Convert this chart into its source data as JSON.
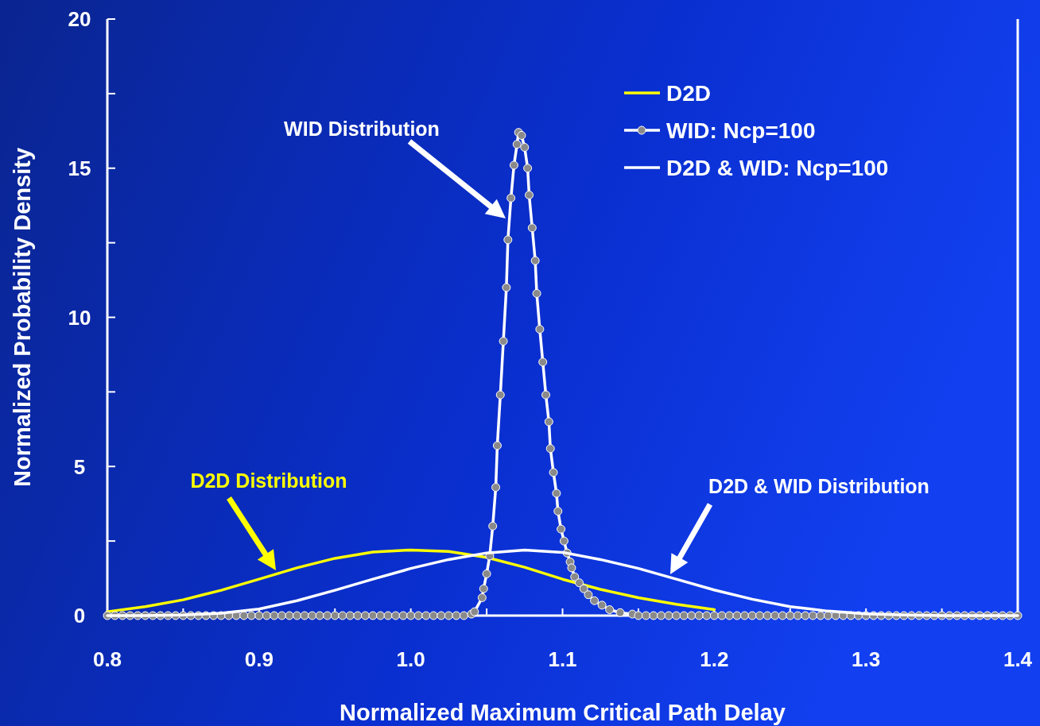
{
  "chart_data": {
    "type": "line",
    "xlabel": "Normalized Maximum Critical Path Delay",
    "ylabel": "Normalized Probability Density",
    "xlim": [
      0.8,
      1.4
    ],
    "ylim": [
      0,
      20
    ],
    "xticks": [
      0.8,
      {
        "value": 0.85,
        "label": null
      },
      0.9,
      {
        "value": 0.95,
        "label": null
      },
      {
        "value": 1,
        "label": "1.0"
      },
      {
        "value": 1.05,
        "label": null
      },
      1.1,
      {
        "value": 1.15,
        "label": null
      },
      1.2,
      {
        "value": 1.25,
        "label": null
      },
      1.3,
      {
        "value": 1.35,
        "label": null
      },
      1.4
    ],
    "yticks": [
      0,
      {
        "value": 2.5,
        "label": null
      },
      5,
      {
        "value": 7.5,
        "label": null
      },
      10,
      {
        "value": 12.5,
        "label": null
      },
      15,
      {
        "value": 17.5,
        "label": null
      },
      20
    ],
    "grid": false,
    "legend": "top right",
    "series": [
      {
        "name": "D2D",
        "color": "#ffff00",
        "marker": "none",
        "x": [
          0.8,
          0.825,
          0.85,
          0.875,
          0.9,
          0.925,
          0.95,
          0.975,
          1.0,
          1.025,
          1.05,
          1.075,
          1.1,
          1.125,
          1.15,
          1.175,
          1.2
        ],
        "values": [
          0.13,
          0.3,
          0.53,
          0.85,
          1.22,
          1.6,
          1.92,
          2.13,
          2.2,
          2.15,
          1.95,
          1.62,
          1.22,
          0.88,
          0.6,
          0.38,
          0.2
        ]
      },
      {
        "name": "WID: Ncp=100",
        "color": "#ffffff",
        "marker": "circle",
        "x": [
          0.8,
          0.805,
          0.81,
          0.815,
          0.82,
          0.825,
          0.83,
          0.835,
          0.84,
          0.845,
          0.85,
          0.855,
          0.86,
          0.865,
          0.87,
          0.875,
          0.88,
          0.885,
          0.89,
          0.895,
          0.9,
          0.905,
          0.91,
          0.915,
          0.92,
          0.925,
          0.93,
          0.935,
          0.94,
          0.945,
          0.95,
          0.955,
          0.96,
          0.965,
          0.97,
          0.975,
          0.98,
          0.985,
          0.99,
          0.995,
          1.0,
          1.005,
          1.01,
          1.015,
          1.02,
          1.025,
          1.03,
          1.035,
          1.04,
          1.042,
          1.047,
          1.048,
          1.05,
          1.052,
          1.054,
          1.056,
          1.057,
          1.059,
          1.061,
          1.063,
          1.064,
          1.066,
          1.068,
          1.07,
          1.071,
          1.073,
          1.075,
          1.077,
          1.078,
          1.08,
          1.082,
          1.083,
          1.085,
          1.087,
          1.089,
          1.091,
          1.092,
          1.094,
          1.096,
          1.097,
          1.099,
          1.101,
          1.103,
          1.105,
          1.106,
          1.108,
          1.111,
          1.114,
          1.117,
          1.121,
          1.126,
          1.131,
          1.138,
          1.146,
          1.15,
          1.155,
          1.16,
          1.165,
          1.17,
          1.175,
          1.18,
          1.185,
          1.19,
          1.195,
          1.2,
          1.205,
          1.21,
          1.215,
          1.22,
          1.225,
          1.23,
          1.235,
          1.24,
          1.245,
          1.25,
          1.255,
          1.26,
          1.265,
          1.27,
          1.275,
          1.28,
          1.285,
          1.29,
          1.295,
          1.3,
          1.305,
          1.31,
          1.315,
          1.32,
          1.325,
          1.33,
          1.335,
          1.34,
          1.345,
          1.35,
          1.355,
          1.36,
          1.365,
          1.37,
          1.375,
          1.38,
          1.385,
          1.39,
          1.395,
          1.4
        ],
        "values": [
          0,
          0,
          0,
          0,
          0,
          0,
          0,
          0,
          0,
          0,
          0,
          0,
          0,
          0,
          0,
          0,
          0,
          0,
          0,
          0,
          0,
          0,
          0,
          0,
          0,
          0,
          0,
          0,
          0,
          0,
          0,
          0,
          0,
          0,
          0,
          0,
          0,
          0,
          0,
          0,
          0,
          0,
          0,
          0,
          0,
          0,
          0,
          0,
          0.05,
          0.13,
          0.6,
          0.9,
          1.4,
          2,
          3,
          4.3,
          5.7,
          7.4,
          9.2,
          11,
          12.6,
          14,
          15.1,
          15.8,
          16.2,
          16.1,
          15.7,
          15,
          14.1,
          13,
          11.9,
          10.8,
          9.6,
          8.5,
          7.4,
          6.5,
          5.6,
          4.8,
          4.1,
          3.5,
          2.9,
          2.5,
          2.1,
          1.8,
          1.6,
          1.3,
          1.1,
          0.9,
          0.7,
          0.5,
          0.35,
          0.2,
          0.1,
          0.05,
          0,
          0,
          0,
          0,
          0,
          0,
          0,
          0,
          0,
          0,
          0,
          0,
          0,
          0,
          0,
          0,
          0,
          0,
          0,
          0,
          0,
          0,
          0,
          0,
          0,
          0,
          0,
          0,
          0,
          0,
          0,
          0,
          0,
          0,
          0,
          0,
          0,
          0,
          0,
          0,
          0,
          0,
          0,
          0,
          0,
          0,
          0,
          0,
          0,
          0,
          0
        ]
      },
      {
        "name": "D2D & WID: Ncp=100",
        "color": "#ffffff",
        "marker": "none",
        "x": [
          0.8,
          0.825,
          0.85,
          0.875,
          0.9,
          0.925,
          0.95,
          0.975,
          1.0,
          1.025,
          1.05,
          1.075,
          1.1,
          1.125,
          1.15,
          1.175,
          1.2,
          1.225,
          1.25,
          1.275,
          1.3,
          1.325,
          1.35,
          1.4
        ],
        "values": [
          0,
          0,
          0.02,
          0.08,
          0.22,
          0.5,
          0.85,
          1.22,
          1.58,
          1.88,
          2.1,
          2.2,
          2.12,
          1.88,
          1.58,
          1.22,
          0.86,
          0.55,
          0.3,
          0.15,
          0.06,
          0.02,
          0,
          0
        ]
      }
    ],
    "annotations": [
      "WID Distribution",
      "D2D Distribution",
      "D2D & WID Distribution"
    ]
  }
}
